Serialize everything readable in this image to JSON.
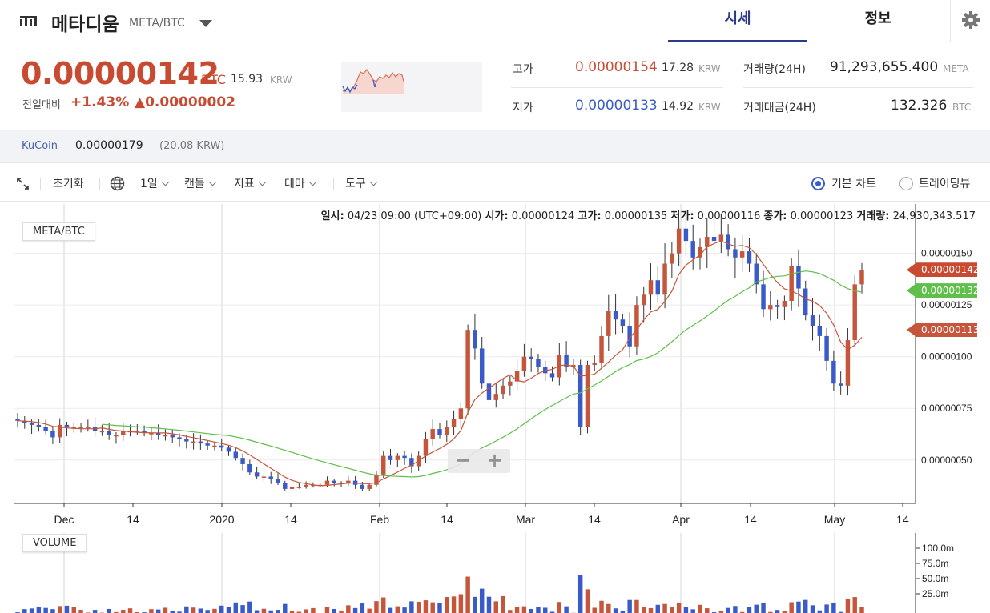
{
  "header": {
    "coin_name": "메타디움",
    "coin_pair": "META/BTC",
    "tabs": [
      "시세",
      "정보"
    ]
  },
  "price": {
    "current": "0.00000142",
    "unit": "BTC",
    "krw": "15.93",
    "krw_unit": "KRW",
    "change_label": "전일대비",
    "change_pct": "+1.43%",
    "change_amt": "▲0.00000002"
  },
  "stats": {
    "high_label": "고가",
    "high_value": "0.00000154",
    "high_krw": "17.28",
    "low_label": "저가",
    "low_value": "0.00000133",
    "low_krw": "14.92",
    "krw_unit": "KRW",
    "volume_label": "거래량(24H)",
    "volume_value": "91,293,655.400",
    "volume_unit": "META",
    "amount_label": "거래대금(24H)",
    "amount_value": "132.326",
    "amount_unit": "BTC"
  },
  "exchange": {
    "name": "KuCoin",
    "price": "0.00000179",
    "krw": "(20.08 KRW)"
  },
  "toolbar": {
    "reset": "초기화",
    "interval": "1일",
    "candle": "캔들",
    "indicator": "지표",
    "theme": "테마",
    "tools": "도구",
    "basic_chart": "기본 차트",
    "tradingview": "트레이딩뷰"
  },
  "ohlc": {
    "date_label": "일시:",
    "date_value": "04/23 09:00 (UTC+09:00)",
    "open_label": "시가:",
    "open_value": "0.00000124",
    "high_label": "고가:",
    "high_value": "0.00000135",
    "low_label": "저가:",
    "low_value": "0.00000116",
    "close_label": "종가:",
    "close_value": "0.00000123",
    "vol_label": "거래량:",
    "vol_value": "24,930,343.517"
  },
  "colors": {
    "up": "#c5553b",
    "down": "#3a5bc7",
    "ma_short": "#c5553b",
    "ma_long": "#5fbf4a",
    "accent": "#2d3a8c"
  },
  "chart_data": {
    "type": "candlestick",
    "pair_label": "META/BTC",
    "volume_label": "VOLUME",
    "y_ticks": [
      "0.00000150",
      "0.00000125",
      "0.00000100",
      "0.00000075",
      "0.00000050"
    ],
    "x_ticks": [
      "Dec",
      "14",
      "2020",
      "14",
      "Feb",
      "14",
      "Mar",
      "14",
      "Apr",
      "14",
      "May",
      "14"
    ],
    "vol_ticks": [
      "100.0m",
      "75.0m",
      "50.0m",
      "25.0m"
    ],
    "price_tags": [
      {
        "value": "0.00000142",
        "color": "#c84a31"
      },
      {
        "value": "0.00000132",
        "color": "#5fbf4a"
      },
      {
        "value": "0.00000113",
        "color": "#c5553b"
      }
    ],
    "ylim": [
      2.9e-07,
      1.7e-06
    ],
    "close_series": [
      6.9e-07,
      6.8e-07,
      6.7e-07,
      6.6e-07,
      6.4e-07,
      6.1e-07,
      6.7e-07,
      6.6e-07,
      6.6e-07,
      6.6e-07,
      6.6e-07,
      6.4e-07,
      6.4e-07,
      6.2e-07,
      6.2e-07,
      6.4e-07,
      6.4e-07,
      6.4e-07,
      6.3e-07,
      6.3e-07,
      6.2e-07,
      6.2e-07,
      6.1e-07,
      6e-07,
      5.9e-07,
      5.9e-07,
      5.8e-07,
      5.7e-07,
      5.7e-07,
      5.6e-07,
      5.4e-07,
      5.1e-07,
      4.8e-07,
      4.4e-07,
      4.2e-07,
      4.2e-07,
      4.1e-07,
      3.9e-07,
      3.6e-07,
      3.7e-07,
      3.7e-07,
      3.8e-07,
      3.8e-07,
      3.8e-07,
      4e-07,
      3.9e-07,
      3.9e-07,
      4e-07,
      3.8e-07,
      3.6e-07,
      3.8e-07,
      4.3e-07,
      5.2e-07,
      5e-07,
      5.2e-07,
      5.1e-07,
      4.7e-07,
      5.2e-07,
      6e-07,
      6.5e-07,
      6.2e-07,
      6.6e-07,
      7e-07,
      7.5e-07,
      1.13e-06,
      1.04e-06,
      8.7e-07,
      7.9e-07,
      8.2e-07,
      8.6e-07,
      8.8e-07,
      9.3e-07,
      1e-06,
      9.9e-07,
      9.5e-07,
      9.2e-07,
      9e-07,
      1.01e-06,
      9.5e-07,
      9.6e-07,
      6.6e-07,
      9.6e-07,
      9.7e-07,
      1.1e-06,
      1.22e-06,
      1.18e-06,
      1.15e-06,
      1.05e-06,
      1.25e-06,
      1.3e-06,
      1.37e-06,
      1.3e-06,
      1.45e-06,
      1.5e-06,
      1.62e-06,
      1.56e-06,
      1.48e-06,
      1.53e-06,
      1.58e-06,
      1.56e-06,
      1.59e-06,
      1.52e-06,
      1.48e-06,
      1.51e-06,
      1.45e-06,
      1.35e-06,
      1.23e-06,
      1.25e-06,
      1.24e-06,
      1.27e-06,
      1.44e-06,
      1.33e-06,
      1.2e-06,
      1.15e-06,
      1.1e-06,
      9.8e-07,
      8.7e-07,
      8.6e-07,
      1.08e-06,
      1.35e-06,
      1.42e-06
    ]
  }
}
